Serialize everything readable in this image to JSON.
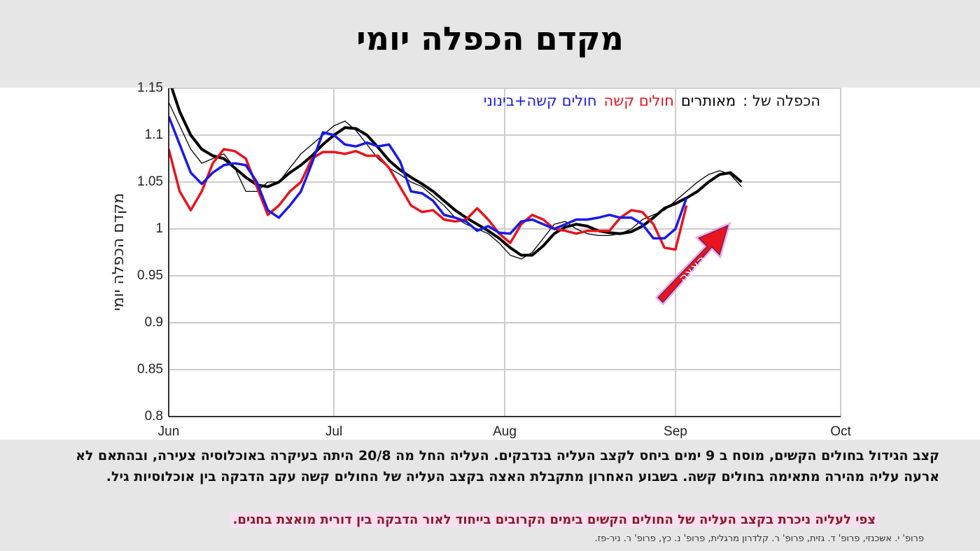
{
  "header": {
    "title": "מקדם הכפלה יומי"
  },
  "chart_data": {
    "type": "line",
    "ylabel": "מקדם הכפלה יומי",
    "legend_title": "הכפלה של :",
    "legend": "top-right",
    "grid": true,
    "xlim": [
      0,
      122
    ],
    "xticks": [
      {
        "value": 0,
        "label": "Jun"
      },
      {
        "value": 30,
        "label": "Jul"
      },
      {
        "value": 61,
        "label": "Aug"
      },
      {
        "value": 92,
        "label": "Sep"
      },
      {
        "value": 122,
        "label": "Oct"
      }
    ],
    "ylim": [
      0.8,
      1.15
    ],
    "yticks": [
      0.8,
      0.85,
      0.9,
      0.95,
      1,
      1.05,
      1.1,
      1.15
    ],
    "x": [
      0,
      2,
      4,
      6,
      8,
      10,
      12,
      14,
      16,
      18,
      20,
      22,
      24,
      26,
      28,
      30,
      32,
      34,
      36,
      38,
      40,
      42,
      44,
      46,
      48,
      50,
      52,
      54,
      56,
      58,
      60,
      62,
      64,
      66,
      68,
      70,
      72,
      74,
      76,
      78,
      80,
      82,
      84,
      86,
      88,
      90,
      92,
      94,
      96,
      98,
      100,
      102,
      104
    ],
    "series": [
      {
        "color": "#000000",
        "width": 1.3,
        "values": [
          1.135,
          1.11,
          1.085,
          1.07,
          1.075,
          1.08,
          1.065,
          1.04,
          1.04,
          1.05,
          1.05,
          1.065,
          1.08,
          1.09,
          1.1,
          1.11,
          1.115,
          1.105,
          1.09,
          1.075,
          1.065,
          1.058,
          1.05,
          1.045,
          1.035,
          1.025,
          1.012,
          1.005,
          1.0,
          0.995,
          0.985,
          0.972,
          0.968,
          0.975,
          0.99,
          1.005,
          1.008,
          1.0,
          0.995,
          0.993,
          0.993,
          0.995,
          1.0,
          1.01,
          1.015,
          1.02,
          1.03,
          1.04,
          1.05,
          1.058,
          1.062,
          1.058,
          1.045
        ]
      },
      {
        "name": "מאותרים",
        "color": "#000000",
        "width": 4,
        "values": [
          1.16,
          1.125,
          1.1,
          1.085,
          1.078,
          1.075,
          1.065,
          1.055,
          1.047,
          1.045,
          1.05,
          1.06,
          1.068,
          1.078,
          1.09,
          1.1,
          1.108,
          1.107,
          1.1,
          1.087,
          1.073,
          1.063,
          1.055,
          1.048,
          1.04,
          1.03,
          1.02,
          1.012,
          1.005,
          0.998,
          0.99,
          0.98,
          0.972,
          0.972,
          0.982,
          0.995,
          1.002,
          1.005,
          1.003,
          0.998,
          0.996,
          0.995,
          0.997,
          1.003,
          1.012,
          1.022,
          1.027,
          1.033,
          1.04,
          1.05,
          1.058,
          1.06,
          1.05
        ]
      },
      {
        "name": "חולים קשה",
        "color": "#e8141e",
        "width": 3.5,
        "values": [
          1.085,
          1.04,
          1.02,
          1.04,
          1.07,
          1.085,
          1.083,
          1.075,
          1.045,
          1.015,
          1.025,
          1.04,
          1.05,
          1.075,
          1.082,
          1.082,
          1.08,
          1.083,
          1.078,
          1.078,
          1.065,
          1.045,
          1.025,
          1.018,
          1.02,
          1.01,
          1.008,
          1.01,
          1.022,
          1.01,
          0.995,
          0.985,
          1.005,
          1.015,
          1.01,
          1.0,
          0.998,
          0.995,
          0.998,
          0.998,
          0.998,
          1.012,
          1.02,
          1.018,
          1.005,
          0.98,
          0.978,
          1.025,
          null,
          null,
          null,
          null,
          null
        ]
      },
      {
        "name": "חולים קשה+בינוני",
        "color": "#1a1ae6",
        "width": 3.5,
        "values": [
          1.12,
          1.09,
          1.06,
          1.048,
          1.06,
          1.068,
          1.07,
          1.068,
          1.05,
          1.02,
          1.012,
          1.025,
          1.04,
          1.07,
          1.103,
          1.1,
          1.09,
          1.088,
          1.092,
          1.088,
          1.09,
          1.072,
          1.04,
          1.038,
          1.03,
          1.015,
          1.012,
          1.008,
          0.998,
          1.003,
          0.996,
          0.995,
          1.008,
          1.01,
          1.005,
          1.0,
          1.005,
          1.01,
          1.01,
          1.012,
          1.015,
          1.012,
          1.012,
          1.005,
          0.99,
          0.99,
          1.0,
          1.033,
          null,
          null,
          null,
          null,
          null
        ]
      }
    ],
    "annotation": "האצה"
  },
  "footer": {
    "paragraph": "קצב הגידול בחולים הקשים, מוסח ב 9 ימים ביחס לקצב העליה בנדבקים.  העליה החל מה 20/8 היתה בעיקרה באוכלוסיה צעירה, ובהתאם לא ארעה עליה מהירה מתאימה בחולים קשה. בשבוע האחרון  מתקבלת האצה בקצב העליה של החולים קשה עקב הדבקה בין אוכלוסיות גיל.",
    "highlight": "צפי לעליה ניכרת בקצב העליה של החולים הקשים בימים הקרובים בייחוד לאור הדבקה בין דורית מואצת בחגים.",
    "credit": "פרופ' י. אשכנזי, פרופ' ד. גזית, פרופ' ר. קלדרון מרגלית, פרופ' נ. כץ, פרופ' ר. ניר-פז."
  }
}
